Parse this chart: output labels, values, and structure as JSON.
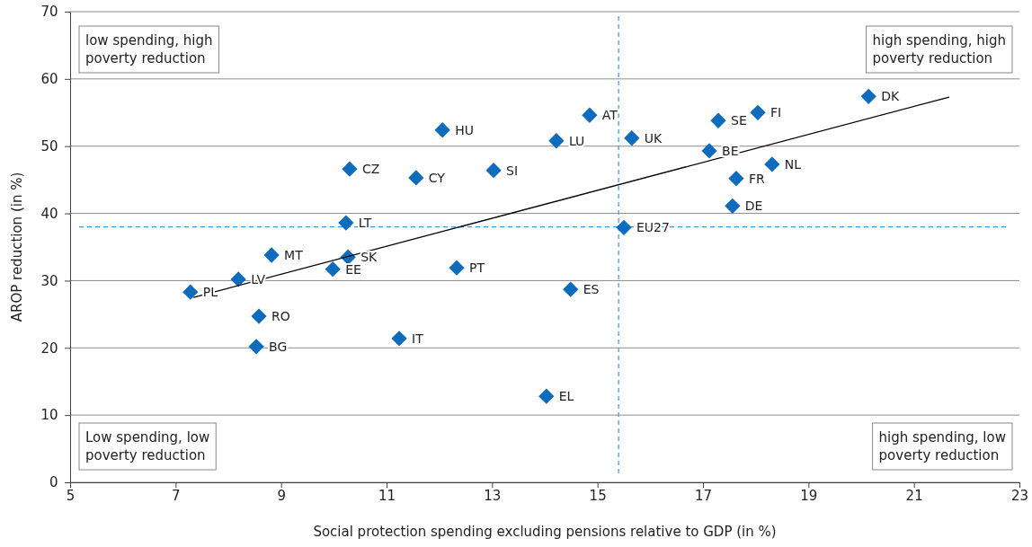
{
  "chart_data": {
    "type": "scatter",
    "xlabel": "Social protection spending excluding pensions relative to GDP (in %)",
    "ylabel": "AROP reduction (in %)",
    "xlim": [
      5,
      23
    ],
    "xticks": [
      5,
      7,
      9,
      11,
      13,
      15,
      17,
      19,
      21,
      23
    ],
    "ylim": [
      0,
      70
    ],
    "yticks": [
      0,
      10,
      20,
      30,
      40,
      50,
      60,
      70
    ],
    "grid": "y",
    "series": [
      {
        "color": "#0f6cbd",
        "marker": "diamond",
        "x": [
          7.28,
          8.19,
          8.82,
          8.58,
          8.53,
          9.98,
          10.27,
          10.23,
          10.3,
          11.24,
          11.56,
          12.06,
          13.03,
          12.33,
          14.03,
          14.49,
          14.22,
          14.85,
          15.5,
          15.65,
          17.12,
          17.29,
          18.04,
          17.63,
          17.56,
          18.31,
          20.14
        ],
        "values": [
          28.3,
          30.2,
          33.8,
          24.7,
          20.2,
          31.7,
          33.5,
          38.6,
          46.6,
          21.4,
          45.3,
          52.4,
          46.4,
          31.9,
          12.8,
          28.7,
          50.8,
          54.6,
          37.9,
          51.2,
          49.3,
          53.8,
          55,
          45.2,
          41.1,
          47.3,
          57.4
        ]
      },
      {
        "type": "line",
        "color": "#000000",
        "marker": "none",
        "x": [
          7.34,
          21.67
        ],
        "values": [
          27.5,
          57.3
        ]
      }
    ],
    "ref_lines": [
      {
        "axis": "x",
        "value": 15.4,
        "color": "#3a9ad9",
        "line_style": "dashed"
      },
      {
        "axis": "y",
        "value": 38,
        "color": "#3a9ad9",
        "line_style": "dashed"
      }
    ],
    "annotations": [
      "low spending, high poverty reduction",
      "high spending, high poverty reduction",
      "Low spending, low poverty reduction",
      "high spending, low poverty reduction",
      {
        "text": "PL",
        "x": 7.28,
        "y": 28.3
      },
      {
        "text": "LV",
        "x": 8.19,
        "y": 30.2
      },
      {
        "text": "MT",
        "x": 8.82,
        "y": 33.8
      },
      {
        "text": "RO",
        "x": 8.58,
        "y": 24.7
      },
      {
        "text": "BG",
        "x": 8.53,
        "y": 20.2
      },
      {
        "text": "EE",
        "x": 9.98,
        "y": 31.7
      },
      {
        "text": "SK",
        "x": 10.27,
        "y": 33.5
      },
      {
        "text": "LT",
        "x": 10.23,
        "y": 38.6
      },
      {
        "text": "CZ",
        "x": 10.3,
        "y": 46.6
      },
      {
        "text": "IT",
        "x": 11.24,
        "y": 21.4
      },
      {
        "text": "CY",
        "x": 11.56,
        "y": 45.3
      },
      {
        "text": "HU",
        "x": 12.06,
        "y": 52.4
      },
      {
        "text": "SI",
        "x": 13.03,
        "y": 46.4
      },
      {
        "text": "PT",
        "x": 12.33,
        "y": 31.9
      },
      {
        "text": "EL",
        "x": 14.03,
        "y": 12.8
      },
      {
        "text": "ES",
        "x": 14.49,
        "y": 28.7
      },
      {
        "text": "LU",
        "x": 14.22,
        "y": 50.8
      },
      {
        "text": "AT",
        "x": 14.85,
        "y": 54.6
      },
      {
        "text": "EU27",
        "x": 15.5,
        "y": 37.9
      },
      {
        "text": "UK",
        "x": 15.65,
        "y": 51.2
      },
      {
        "text": "BE",
        "x": 17.12,
        "y": 49.3
      },
      {
        "text": "SE",
        "x": 17.29,
        "y": 53.8
      },
      {
        "text": "FI",
        "x": 18.04,
        "y": 55
      },
      {
        "text": "FR",
        "x": 17.63,
        "y": 45.2
      },
      {
        "text": "DE",
        "x": 17.56,
        "y": 41.1
      },
      {
        "text": "NL",
        "x": 18.31,
        "y": 47.3
      },
      {
        "text": "DK",
        "x": 20.14,
        "y": 57.4
      }
    ]
  }
}
